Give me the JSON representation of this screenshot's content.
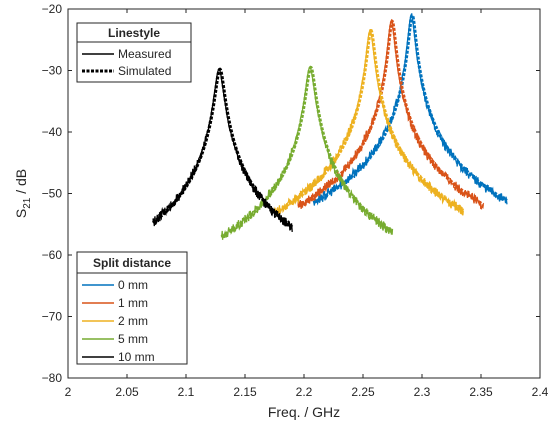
{
  "chart_data": {
    "type": "line",
    "xlabel": "Freq. / GHz",
    "ylabel_main": "S",
    "ylabel_sub": "21",
    "ylabel_rest": " / dB",
    "xlim": [
      2.0,
      2.4
    ],
    "ylim": [
      -80,
      -20
    ],
    "xticks": [
      2,
      2.05,
      2.1,
      2.15,
      2.2,
      2.25,
      2.3,
      2.35,
      2.4
    ],
    "xtick_labels": [
      "2",
      "2.05",
      "2.1",
      "2.15",
      "2.2",
      "2.25",
      "2.3",
      "2.35",
      "2.4"
    ],
    "yticks": [
      -80,
      -70,
      -60,
      -50,
      -40,
      -30,
      -20
    ],
    "ytick_labels": [
      "−80",
      "−70",
      "−60",
      "−50",
      "−40",
      "−30",
      "−20"
    ],
    "grid": false,
    "linestyle_legend": {
      "title": "Linestyle",
      "placement": "top-left",
      "entries": [
        {
          "label": "Measured",
          "style": "solid"
        },
        {
          "label": "Simulated",
          "style": "dotted"
        }
      ]
    },
    "split_legend": {
      "title": "Split distance",
      "placement": "bottom-left",
      "entries": [
        "0 mm",
        "1 mm",
        "2 mm",
        "5 mm",
        "10 mm"
      ]
    },
    "series": [
      {
        "name": "0 mm",
        "color": "#0072BD",
        "f0": 2.291,
        "peak": -21,
        "width": 0.0025,
        "xmin": 2.208,
        "xmax": 2.372
      },
      {
        "name": "1 mm",
        "color": "#D95319",
        "f0": 2.274,
        "peak": -22,
        "width": 0.0025,
        "xmin": 2.195,
        "xmax": 2.352
      },
      {
        "name": "2 mm",
        "color": "#EDB120",
        "f0": 2.256,
        "peak": -23.5,
        "width": 0.0027,
        "xmin": 2.175,
        "xmax": 2.335
      },
      {
        "name": "5 mm",
        "color": "#77AC30",
        "f0": 2.205,
        "peak": -29.5,
        "width": 0.0032,
        "xmin": 2.13,
        "xmax": 2.275
      },
      {
        "name": "10 mm",
        "color": "#000000",
        "f0": 2.128,
        "peak": -29.8,
        "width": 0.0032,
        "xmin": 2.072,
        "xmax": 2.19
      }
    ]
  }
}
